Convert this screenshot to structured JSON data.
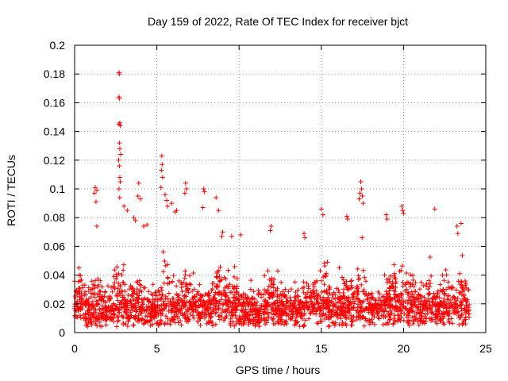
{
  "chart_data": {
    "type": "scatter",
    "title": "Day 159 of 2022, Rate Of TEC Index for receiver bjct",
    "xlabel": "GPS time / hours",
    "ylabel": "ROTI / TECUs",
    "xlim": [
      0,
      25
    ],
    "ylim": [
      0,
      0.2
    ],
    "xticks": [
      0,
      5,
      10,
      15,
      20,
      25
    ],
    "xtick_labels": [
      "0",
      "5",
      "10",
      "15",
      "20",
      "25"
    ],
    "yticks": [
      0,
      0.02,
      0.04,
      0.06,
      0.08,
      0.1,
      0.12,
      0.14,
      0.16,
      0.18,
      0.2
    ],
    "ytick_labels": [
      "0",
      "0.02",
      "0.04",
      "0.06",
      "0.08",
      "0.1",
      "0.12",
      "0.14",
      "0.16",
      "0.18",
      "0.2"
    ],
    "grid": true,
    "marker": "+",
    "color": "#ff0000",
    "series": [
      {
        "name": "ROTI",
        "description_points": "dense scatter 0-24 h, mostly 0.005-0.04 TECU/s",
        "points": [
          [
            2.7,
            0.181
          ],
          [
            2.72,
            0.18
          ],
          [
            2.7,
            0.164
          ],
          [
            2.72,
            0.163
          ],
          [
            2.75,
            0.146
          ],
          [
            2.7,
            0.145
          ],
          [
            2.78,
            0.144
          ],
          [
            2.72,
            0.132
          ],
          [
            2.75,
            0.128
          ],
          [
            2.8,
            0.124
          ],
          [
            2.68,
            0.12
          ],
          [
            2.72,
            0.116
          ],
          [
            2.75,
            0.108
          ],
          [
            2.78,
            0.105
          ],
          [
            2.7,
            0.1
          ],
          [
            2.74,
            0.094
          ],
          [
            1.25,
            0.101
          ],
          [
            1.2,
            0.097
          ],
          [
            1.35,
            0.099
          ],
          [
            1.3,
            0.091
          ],
          [
            1.35,
            0.074
          ],
          [
            5.3,
            0.123
          ],
          [
            5.32,
            0.117
          ],
          [
            5.28,
            0.113
          ],
          [
            5.35,
            0.108
          ],
          [
            5.25,
            0.101
          ],
          [
            3.9,
            0.104
          ],
          [
            3.85,
            0.095
          ],
          [
            4.0,
            0.093
          ],
          [
            6.75,
            0.104
          ],
          [
            6.8,
            0.1
          ],
          [
            6.7,
            0.097
          ],
          [
            7.85,
            0.1
          ],
          [
            7.9,
            0.098
          ],
          [
            7.8,
            0.087
          ],
          [
            8.6,
            0.094
          ],
          [
            8.75,
            0.085
          ],
          [
            17.4,
            0.105
          ],
          [
            17.45,
            0.1
          ],
          [
            17.35,
            0.097
          ],
          [
            17.5,
            0.095
          ],
          [
            17.3,
            0.093
          ],
          [
            17.55,
            0.09
          ],
          [
            19.9,
            0.088
          ],
          [
            19.95,
            0.085
          ],
          [
            20.0,
            0.083
          ],
          [
            21.9,
            0.086
          ],
          [
            15.0,
            0.086
          ],
          [
            15.1,
            0.082
          ],
          [
            16.55,
            0.081
          ],
          [
            16.6,
            0.079
          ],
          [
            18.95,
            0.082
          ],
          [
            19.0,
            0.079
          ],
          [
            23.5,
            0.076
          ],
          [
            23.25,
            0.074
          ],
          [
            23.3,
            0.069
          ],
          [
            11.95,
            0.074
          ],
          [
            11.9,
            0.071
          ],
          [
            13.95,
            0.069
          ],
          [
            14.0,
            0.066
          ],
          [
            10.1,
            0.068
          ],
          [
            9.55,
            0.067
          ],
          [
            9.0,
            0.07
          ],
          [
            8.95,
            0.067
          ],
          [
            5.5,
            0.096
          ],
          [
            5.6,
            0.092
          ],
          [
            5.65,
            0.088
          ],
          [
            5.9,
            0.09
          ],
          [
            6.1,
            0.084
          ],
          [
            6.2,
            0.085
          ],
          [
            3.0,
            0.088
          ],
          [
            3.2,
            0.085
          ],
          [
            3.6,
            0.08
          ],
          [
            3.7,
            0.078
          ],
          [
            4.2,
            0.074
          ],
          [
            4.4,
            0.075
          ]
        ]
      }
    ]
  }
}
